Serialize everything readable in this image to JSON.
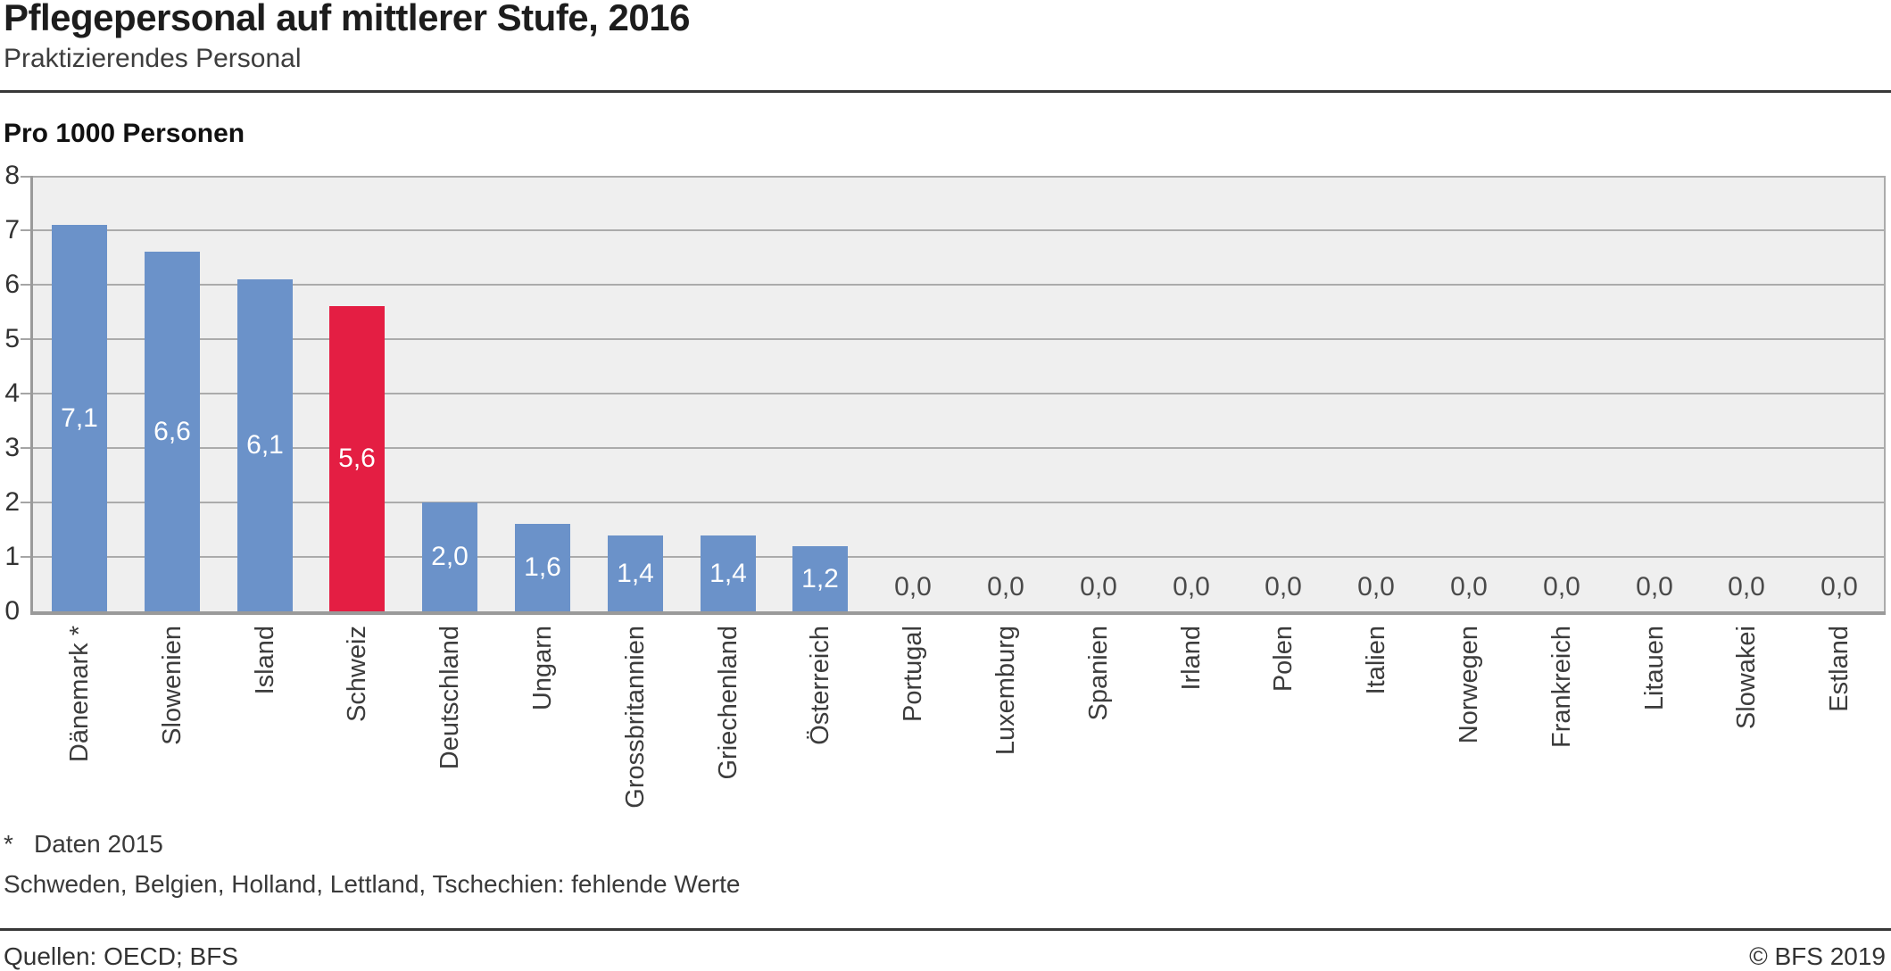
{
  "header": {
    "title": "Pflegepersonal auf mittlerer Stufe, 2016",
    "subtitle": "Praktizierendes Personal"
  },
  "chart_data": {
    "type": "bar",
    "title": "Pflegepersonal auf mittlerer Stufe, 2016",
    "subtitle": "Praktizierendes Personal",
    "ylabel": "Pro 1000 Personen",
    "xlabel": "",
    "ylim": [
      0,
      8
    ],
    "yticks": [
      0,
      1,
      2,
      3,
      4,
      5,
      6,
      7,
      8
    ],
    "grid": true,
    "legend": "none",
    "categories": [
      "Dänemark *",
      "Slowenien",
      "Island",
      "Schweiz",
      "Deutschland",
      "Ungarn",
      "Grossbritannien",
      "Griechenland",
      "Österreich",
      "Portugal",
      "Luxemburg",
      "Spanien",
      "Irland",
      "Polen",
      "Italien",
      "Norwegen",
      "Frankreich",
      "Litauen",
      "Slowakei",
      "Estland"
    ],
    "values": [
      7.1,
      6.6,
      6.1,
      5.6,
      2.0,
      1.6,
      1.4,
      1.4,
      1.2,
      0.0,
      0.0,
      0.0,
      0.0,
      0.0,
      0.0,
      0.0,
      0.0,
      0.0,
      0.0,
      0.0
    ],
    "value_labels": [
      "7,1",
      "6,6",
      "6,1",
      "5,6",
      "2,0",
      "1,6",
      "1,4",
      "1,4",
      "1,2",
      "0,0",
      "0,0",
      "0,0",
      "0,0",
      "0,0",
      "0,0",
      "0,0",
      "0,0",
      "0,0",
      "0,0",
      "0,0"
    ],
    "highlight_category": "Schweiz",
    "highlight_index": 3,
    "colors": {
      "bar": "#6b92c9",
      "highlight": "#e41e43",
      "plot_background": "#efefef",
      "gridline": "#ababab",
      "axis": "#9a9a9a",
      "value_label": "#ffffff",
      "zero_value_label": "#4a4a4a"
    }
  },
  "footnotes": [
    {
      "marker": "*",
      "text": "Daten 2015"
    },
    {
      "marker": "",
      "text": "Schweden, Belgien, Holland, Lettland, Tschechien: fehlende Werte"
    }
  ],
  "footer": {
    "source": "Quellen: OECD; BFS",
    "copyright": "© BFS 2019"
  }
}
